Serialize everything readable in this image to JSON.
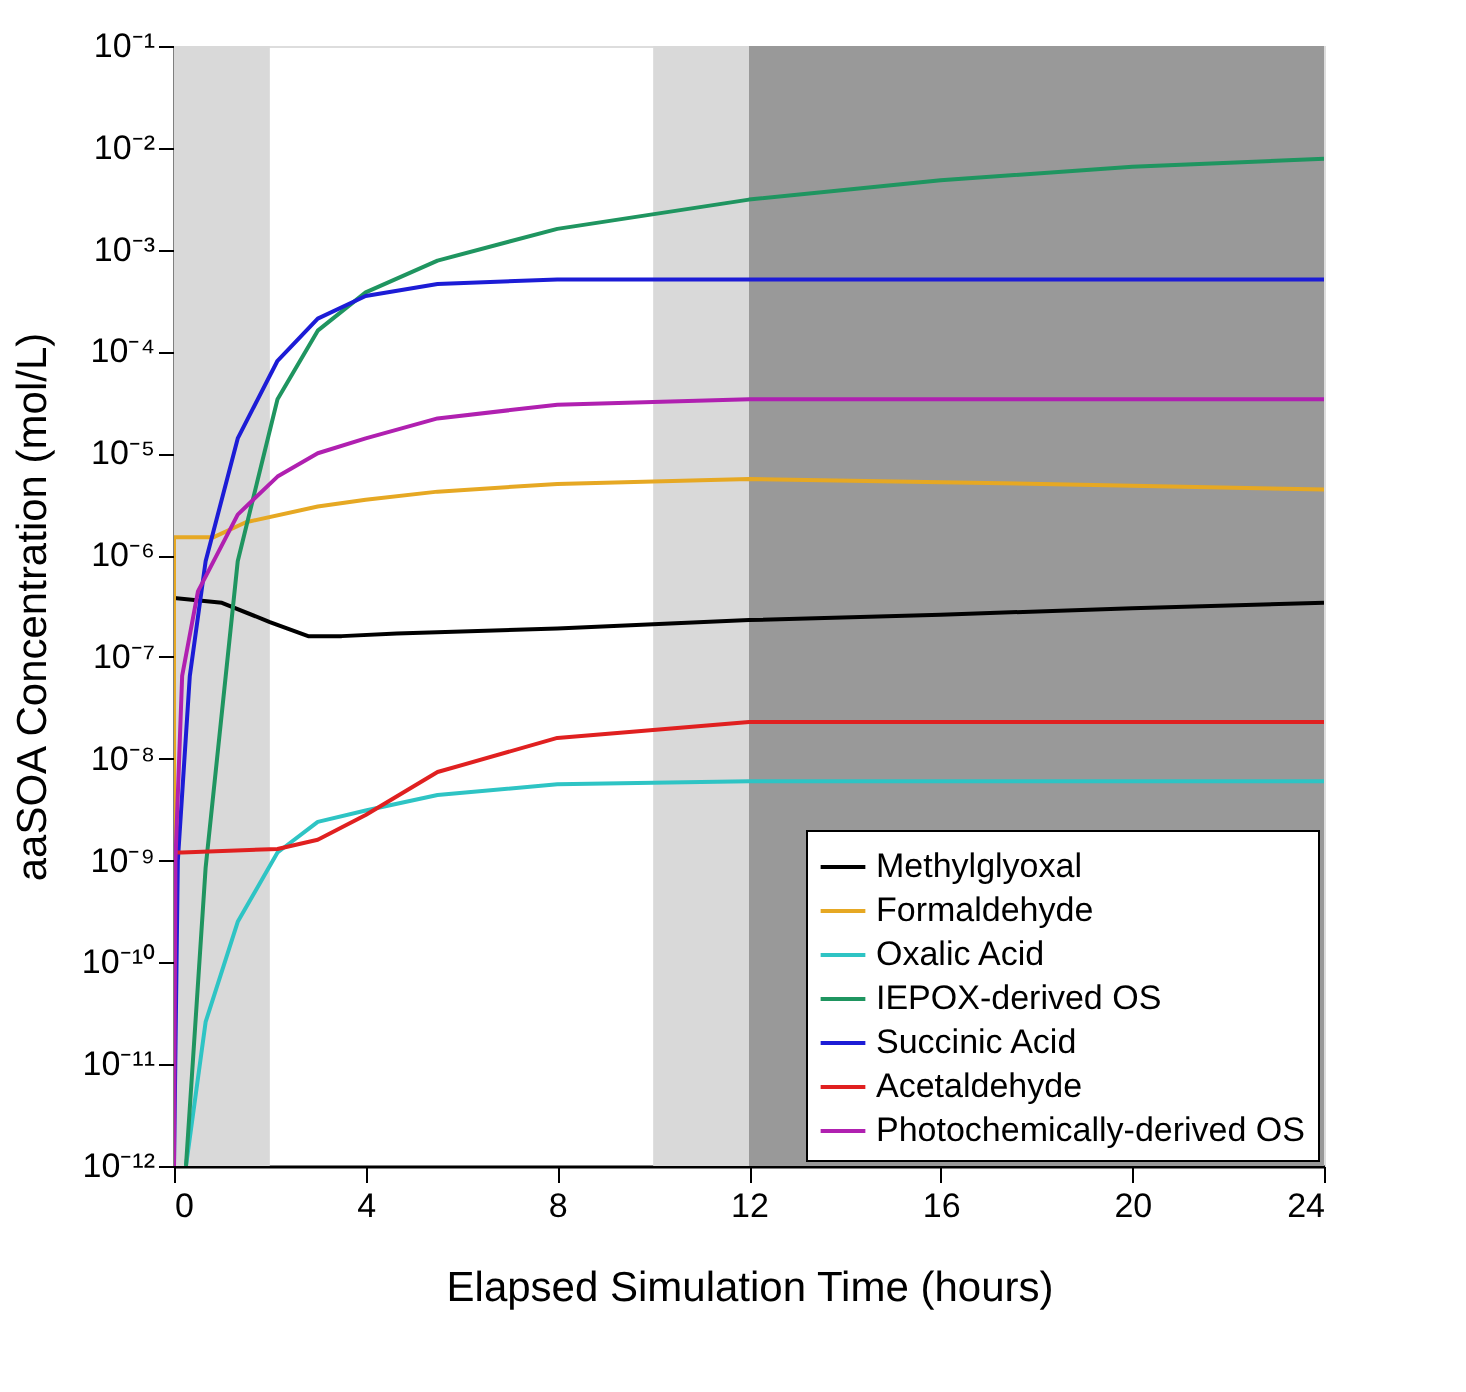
{
  "chart_data": {
    "type": "line",
    "xlabel": "Elapsed Simulation Time (hours)",
    "ylabel": "aaSOA Concentration (mol/L)",
    "log": "y",
    "grid": false,
    "legend": "bottom right",
    "line_style": "solid",
    "marker": "none",
    "xlim": [
      0,
      24
    ],
    "xticks": [
      0,
      4,
      8,
      12,
      16,
      20,
      24
    ],
    "ylim": [
      1e-12,
      0.1
    ],
    "yticks": [
      {
        "value": 1e-12,
        "label": "10⁻¹²"
      },
      {
        "value": 1e-11,
        "label": "10⁻¹¹"
      },
      {
        "value": 1e-10,
        "label": "10⁻¹⁰"
      },
      {
        "value": 1e-09,
        "label": "10⁻⁹"
      },
      {
        "value": 1e-08,
        "label": "10⁻⁸"
      },
      {
        "value": 1e-07,
        "label": "10⁻⁷"
      },
      {
        "value": 1e-06,
        "label": "10⁻⁶"
      },
      {
        "value": 1e-05,
        "label": "10⁻⁵"
      },
      {
        "value": 0.0001,
        "label": "10⁻⁴"
      },
      {
        "value": 0.001,
        "label": "10⁻³"
      },
      {
        "value": 0.01,
        "label": "10⁻²"
      },
      {
        "value": 0.1,
        "label": "10⁻¹"
      }
    ],
    "bands": [
      {
        "axis": "x",
        "from": 0,
        "to": 2,
        "color": "#d9d9d9"
      },
      {
        "axis": "x",
        "from": 10,
        "to": 12,
        "color": "#d9d9d9"
      },
      {
        "axis": "x",
        "from": 12,
        "to": 24,
        "color": "#999999"
      }
    ],
    "series": [
      {
        "name": "Methylglyoxal",
        "color": "#000000",
        "x": [
          0,
          1,
          2,
          2.8,
          3.5,
          4.65,
          8,
          12,
          16,
          20,
          24
        ],
        "values": [
          3.8e-07,
          3.4e-07,
          2.2e-07,
          1.6e-07,
          1.6e-07,
          1.7e-07,
          1.9e-07,
          2.3e-07,
          2.6e-07,
          3e-07,
          3.4e-07
        ]
      },
      {
        "name": "Formaldehyde",
        "color": "#e6a823",
        "x": [
          0,
          0,
          0.83,
          1.5,
          3,
          4,
          5.5,
          8,
          12,
          16,
          20,
          24
        ],
        "values": [
          1e-12,
          1.5e-06,
          1.5e-06,
          2.1e-06,
          3e-06,
          3.5e-06,
          4.2e-06,
          5e-06,
          5.6e-06,
          5.2e-06,
          4.8e-06,
          4.4e-06
        ]
      },
      {
        "name": "Oxalic Acid",
        "color": "#2ec4c4",
        "x": [
          0.25,
          0.66,
          1.33,
          2.16,
          3,
          4,
          5.5,
          8,
          12,
          16,
          20,
          24
        ],
        "values": [
          1e-12,
          2.6e-11,
          2.5e-10,
          1.2e-09,
          2.4e-09,
          3.1e-09,
          4.4e-09,
          5.6e-09,
          6e-09,
          6e-09,
          6e-09,
          6e-09
        ]
      },
      {
        "name": "IEPOX-derived OS",
        "color": "#1f9560",
        "x": [
          0.25,
          0.66,
          1.33,
          2.16,
          3,
          4,
          5.5,
          8,
          12,
          16,
          20,
          24
        ],
        "values": [
          1e-12,
          8.5e-10,
          8.7e-07,
          3.4e-05,
          0.00016,
          0.00038,
          0.00078,
          0.0016,
          0.0031,
          0.0048,
          0.0065,
          0.0078
        ]
      },
      {
        "name": "Succinic Acid",
        "color": "#1c1cd6",
        "x": [
          0,
          0.08,
          0.33,
          0.66,
          1.33,
          2.16,
          3,
          4,
          5.5,
          8,
          12,
          16,
          20,
          24
        ],
        "values": [
          1e-12,
          1e-09,
          6.5e-08,
          8.7e-07,
          1.4e-05,
          8.1e-05,
          0.00021,
          0.00035,
          0.00046,
          0.00051,
          0.00051,
          0.00051,
          0.00051,
          0.00051
        ]
      },
      {
        "name": "Acetaldehyde",
        "color": "#e02020",
        "x": [
          0,
          0,
          0.17,
          2.16,
          3,
          4,
          5.5,
          8,
          12,
          16,
          20,
          24
        ],
        "values": [
          1e-12,
          1.2e-09,
          1.2e-09,
          1.3e-09,
          1.6e-09,
          2.8e-09,
          7.4e-09,
          1.6e-08,
          2.3e-08,
          2.3e-08,
          2.3e-08,
          2.3e-08
        ]
      },
      {
        "name": "Photochemically-derived OS",
        "color": "#b020b0",
        "x": [
          0,
          0.03,
          0.17,
          0.5,
          1.33,
          2.16,
          3,
          4,
          5.5,
          8,
          12,
          16,
          20,
          24
        ],
        "values": [
          1e-12,
          1e-09,
          6.5e-08,
          4.4e-07,
          2.5e-06,
          5.9e-06,
          1e-05,
          1.4e-05,
          2.2e-05,
          3e-05,
          3.4e-05,
          3.4e-05,
          3.4e-05,
          3.4e-05
        ]
      }
    ]
  }
}
